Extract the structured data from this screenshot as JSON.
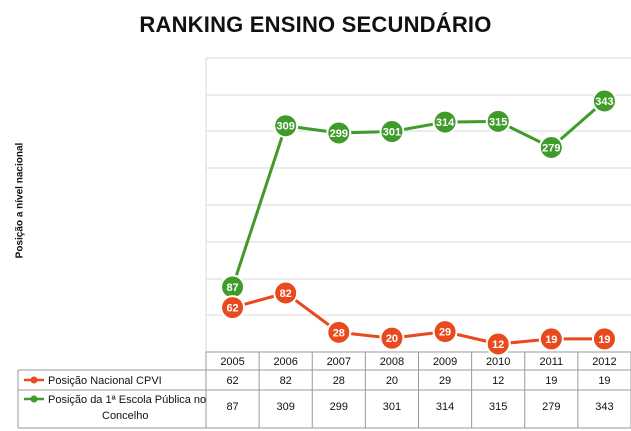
{
  "chart_data": {
    "type": "line",
    "title": "RANKING ENSINO SECUNDÁRIO",
    "ylabel": "Posição a nível nacional",
    "xlabel": "",
    "categories": [
      "2005",
      "2006",
      "2007",
      "2008",
      "2009",
      "2010",
      "2011",
      "2012"
    ],
    "y_axis": "reversed (1 at top)",
    "grid": true,
    "legend": "data table below chart",
    "series": [
      {
        "name": "Posição Nacional CPVI",
        "color": "#e8491d",
        "values": [
          62,
          82,
          28,
          20,
          29,
          12,
          19,
          19
        ]
      },
      {
        "name": "Posição da 1ª Escola Pública no Concelho",
        "color": "#3f9b2a",
        "values": [
          87,
          309,
          299,
          301,
          314,
          315,
          279,
          343
        ]
      }
    ]
  }
}
